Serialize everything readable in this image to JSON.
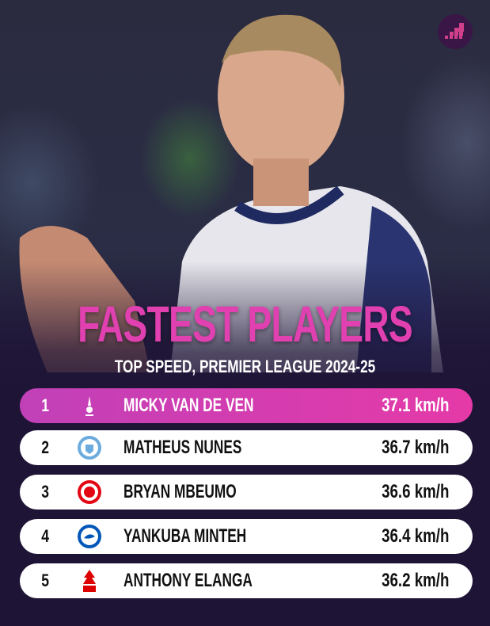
{
  "title": "FASTEST PLAYERS",
  "subtitle": "TOP SPEED, PREMIER LEAGUE 2024-25",
  "colors": {
    "accent": "#e040b0",
    "background": "#1e1436",
    "row": "#ffffff"
  },
  "rankings": [
    {
      "rank": "1",
      "club_icon": "tottenham-crest-icon",
      "name": "MICKY VAN DE VEN",
      "speed": "37.1 km/h"
    },
    {
      "rank": "2",
      "club_icon": "man-city-crest-icon",
      "name": "MATHEUS NUNES",
      "speed": "36.7 km/h"
    },
    {
      "rank": "3",
      "club_icon": "brentford-crest-icon",
      "name": "BRYAN MBEUMO",
      "speed": "36.6 km/h"
    },
    {
      "rank": "4",
      "club_icon": "brighton-crest-icon",
      "name": "YANKUBA MINTEH",
      "speed": "36.4 km/h"
    },
    {
      "rank": "5",
      "club_icon": "nottingham-forest-crest-icon",
      "name": "ANTHONY ELANGA",
      "speed": "36.2 km/h"
    }
  ]
}
